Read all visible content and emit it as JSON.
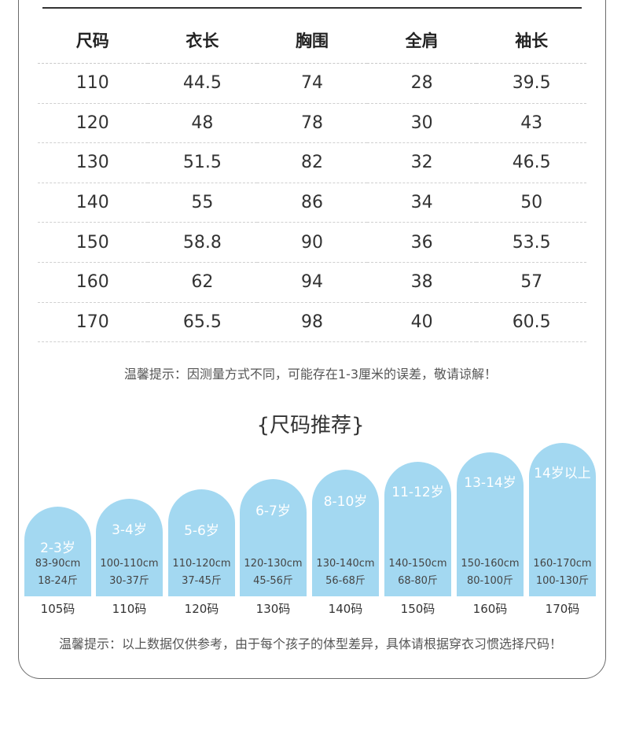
{
  "table": {
    "headers": [
      "尺码",
      "衣长",
      "胸围",
      "全肩",
      "袖长"
    ],
    "rows": [
      [
        "110",
        "44.5",
        "74",
        "28",
        "39.5"
      ],
      [
        "120",
        "48",
        "78",
        "30",
        "43"
      ],
      [
        "130",
        "51.5",
        "82",
        "32",
        "46.5"
      ],
      [
        "140",
        "55",
        "86",
        "34",
        "50"
      ],
      [
        "150",
        "58.8",
        "90",
        "36",
        "53.5"
      ],
      [
        "160",
        "62",
        "94",
        "38",
        "57"
      ],
      [
        "170",
        "65.5",
        "98",
        "40",
        "60.5"
      ]
    ]
  },
  "note1": "温馨提示：因测量方式不同，可能存在1-3厘米的误差，敬请谅解！",
  "recommend": {
    "title": "{尺码推荐}",
    "card_color": "#a3d8f1",
    "cards": [
      {
        "age": "2-3岁",
        "height": "83-90cm",
        "weight": "18-24斤",
        "size": "105码"
      },
      {
        "age": "3-4岁",
        "height": "100-110cm",
        "weight": "30-37斤",
        "size": "110码"
      },
      {
        "age": "5-6岁",
        "height": "110-120cm",
        "weight": "37-45斤",
        "size": "120码"
      },
      {
        "age": "6-7岁",
        "height": "120-130cm",
        "weight": "45-56斤",
        "size": "130码"
      },
      {
        "age": "8-10岁",
        "height": "130-140cm",
        "weight": "56-68斤",
        "size": "140码"
      },
      {
        "age": "11-12岁",
        "height": "140-150cm",
        "weight": "68-80斤",
        "size": "150码"
      },
      {
        "age": "13-14岁",
        "height": "150-160cm",
        "weight": "80-100斤",
        "size": "160码"
      },
      {
        "age": "14岁以上",
        "height": "160-170cm",
        "weight": "100-130斤",
        "size": "170码"
      }
    ]
  },
  "note2": "温馨提示：以上数据仅供参考，由于每个孩子的体型差异，具体请根据穿衣习惯选择尺码！"
}
